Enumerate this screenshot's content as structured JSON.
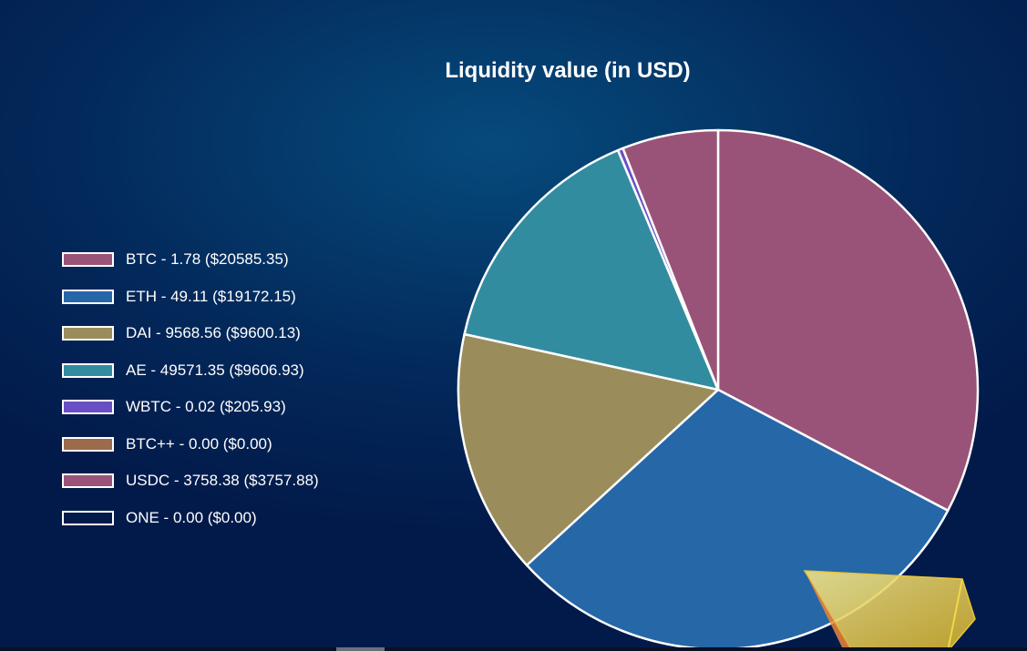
{
  "chart_data": {
    "type": "pie",
    "title": "Liquidity value (in USD)",
    "legend_position": "left",
    "slices": [
      {
        "label": "BTC - 1.78 ($20585.35)",
        "value": 20585.35,
        "color": "#9a5378"
      },
      {
        "label": "ETH - 49.11 ($19172.15)",
        "value": 19172.15,
        "color": "#2667a8"
      },
      {
        "label": "DAI - 9568.56 ($9600.13)",
        "value": 9600.13,
        "color": "#9b8c5b"
      },
      {
        "label": "AE - 49571.35 ($9606.93)",
        "value": 9606.93,
        "color": "#328c9f"
      },
      {
        "label": "WBTC - 0.02 ($205.93)",
        "value": 205.93,
        "color": "#6a4fc4"
      },
      {
        "label": "BTC++ - 0.00 ($0.00)",
        "value": 0.0,
        "color": "#9b6b4b"
      },
      {
        "label": "USDC - 3758.38 ($3757.88)",
        "value": 3757.88,
        "color": "#9a5378"
      },
      {
        "label": "ONE - 0.00 ($0.00)",
        "value": 0.0,
        "color": "transparent"
      }
    ]
  }
}
